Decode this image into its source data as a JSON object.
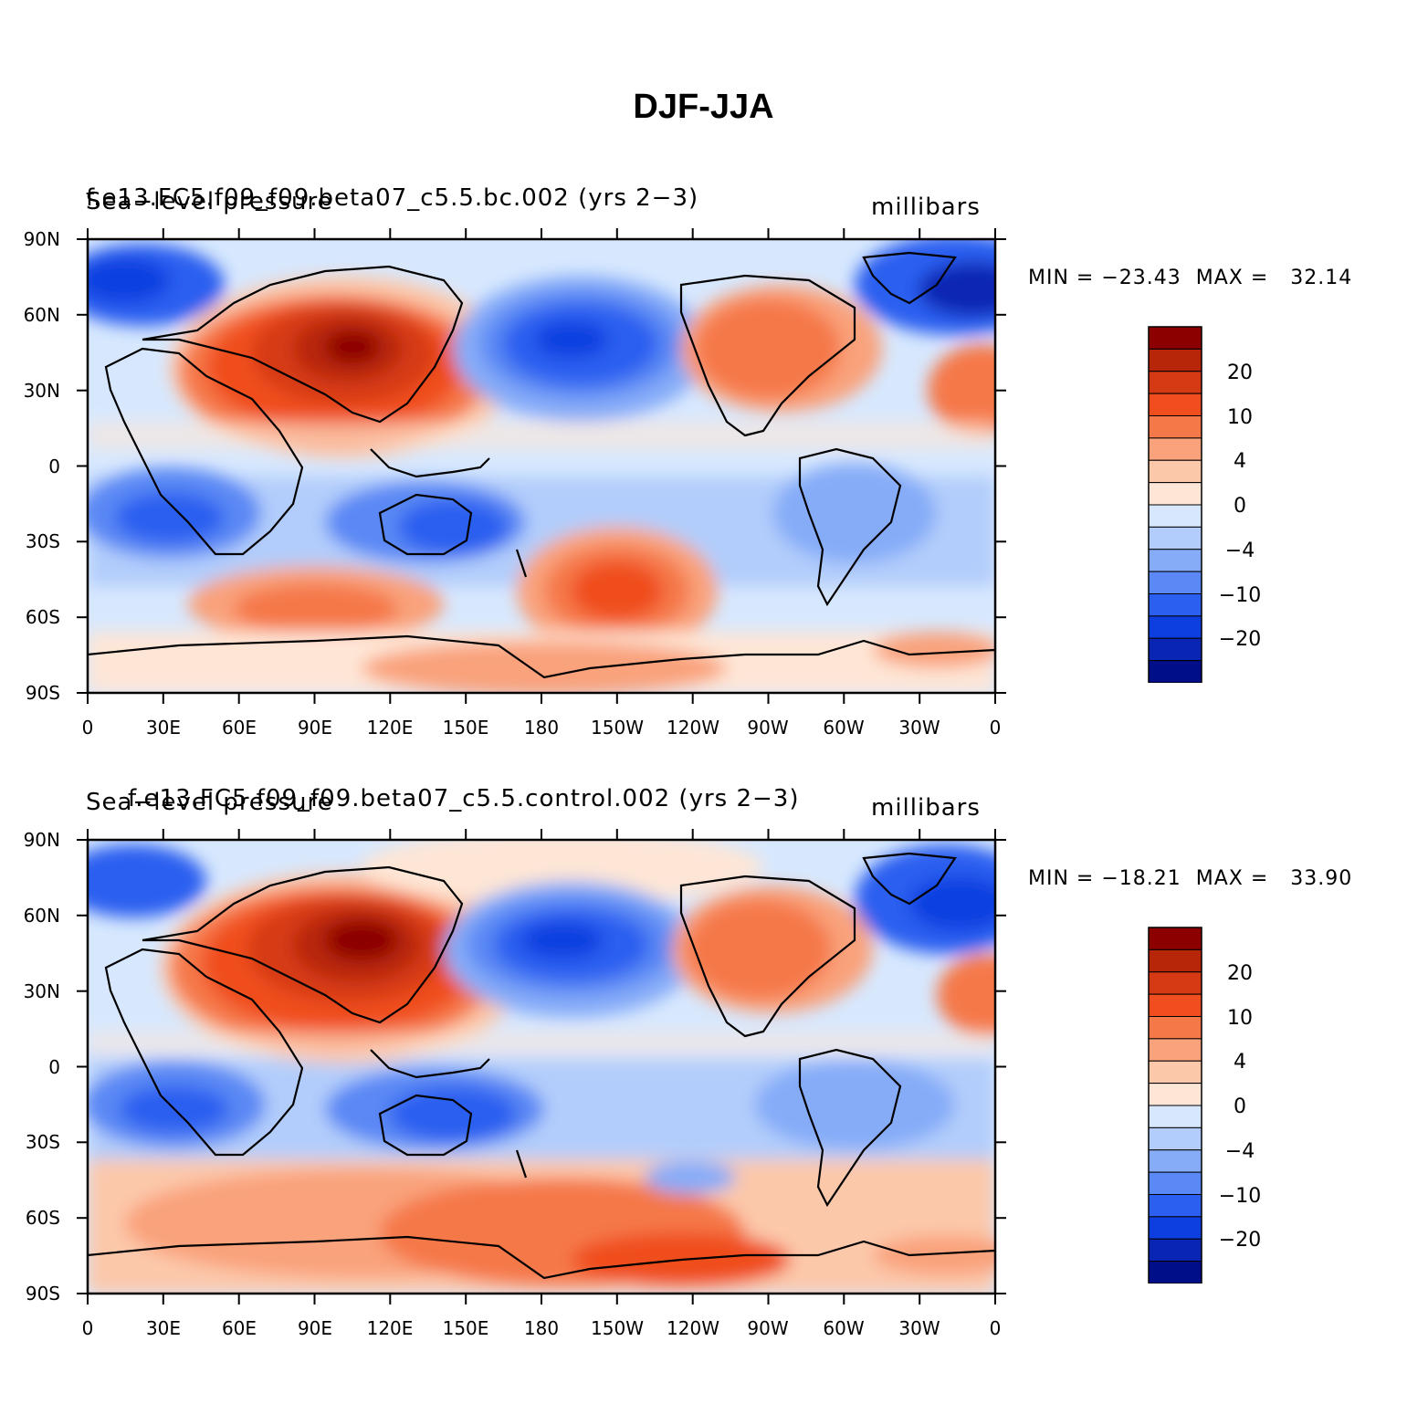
{
  "title": "DJF-JJA",
  "axes": {
    "lat_labels": [
      "90N",
      "60N",
      "30N",
      "0",
      "30S",
      "60S",
      "90S"
    ],
    "lon_labels": [
      "0",
      "30E",
      "60E",
      "90E",
      "120E",
      "150E",
      "180",
      "150W",
      "120W",
      "90W",
      "60W",
      "30W",
      "0"
    ]
  },
  "colorbar": {
    "labels": [
      "20",
      "10",
      "4",
      "0",
      "−4",
      "−10",
      "−20"
    ],
    "colors": [
      "#8c0000",
      "#b8260a",
      "#d63a14",
      "#f04e1e",
      "#f57848",
      "#f9a27c",
      "#fcc8aa",
      "#fee6d6",
      "#d7e8fe",
      "#b2cdfb",
      "#86acf8",
      "#5a88f4",
      "#2b5ff0",
      "#0d3fe0",
      "#0825b4",
      "#000e8a"
    ]
  },
  "panels": [
    {
      "case": "f.e13.FC5.f09_f09.beta07_c5.5.bc.002 (yrs 2−3)",
      "variable": "Sea−level pressure",
      "units": "millibars",
      "minmax": "MIN = −23.43  MAX =   32.14"
    },
    {
      "case": "f.e13.FC5.f09_f09.beta07_c5.5.control.002 (yrs 2−3)",
      "variable": "Sea−level pressure",
      "units": "millibars",
      "minmax": "MIN = −18.21  MAX =   33.90"
    }
  ]
}
